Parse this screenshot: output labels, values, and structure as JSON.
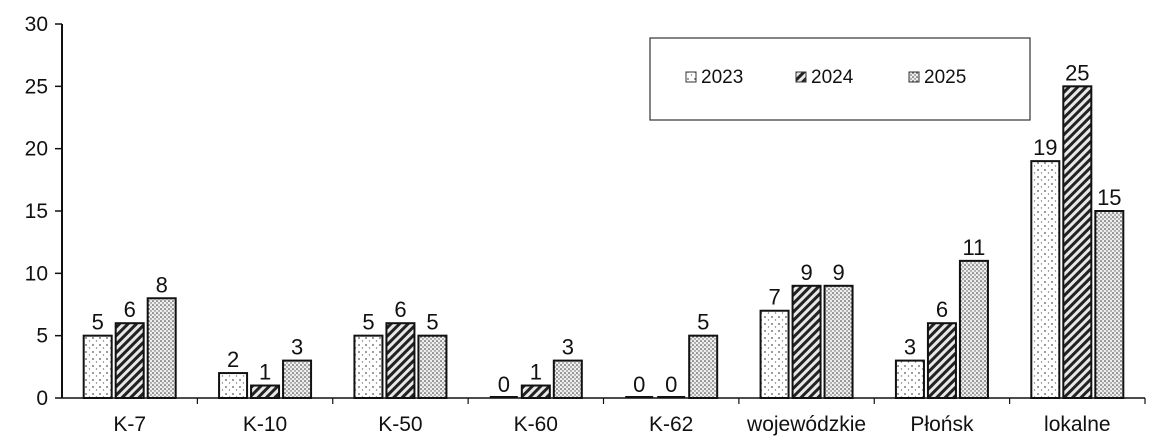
{
  "chart_data": {
    "type": "bar",
    "title": "",
    "xlabel": "",
    "ylabel": "",
    "ylim": [
      0,
      30
    ],
    "yticks": [
      0,
      5,
      10,
      15,
      20,
      25,
      30
    ],
    "grid": false,
    "legend_position": "top-right",
    "categories": [
      "K-7",
      "K-10",
      "K-50",
      "K-60",
      "K-62",
      "wojewódzkie",
      "Płońsk",
      "lokalne"
    ],
    "series": [
      {
        "name": "2023",
        "values": [
          5,
          2,
          5,
          0,
          0,
          7,
          3,
          19
        ],
        "pattern": "light-dots"
      },
      {
        "name": "2024",
        "values": [
          6,
          1,
          6,
          1,
          0,
          9,
          6,
          25
        ],
        "pattern": "hatched"
      },
      {
        "name": "2025",
        "values": [
          8,
          3,
          5,
          3,
          5,
          9,
          11,
          15
        ],
        "pattern": "dense-dots"
      }
    ]
  }
}
